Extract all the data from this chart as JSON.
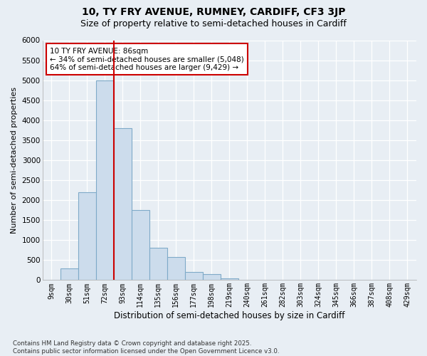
{
  "title1": "10, TY FRY AVENUE, RUMNEY, CARDIFF, CF3 3JP",
  "title2": "Size of property relative to semi-detached houses in Cardiff",
  "xlabel": "Distribution of semi-detached houses by size in Cardiff",
  "ylabel": "Number of semi-detached properties",
  "categories": [
    "9sqm",
    "30sqm",
    "51sqm",
    "72sqm",
    "93sqm",
    "114sqm",
    "135sqm",
    "156sqm",
    "177sqm",
    "198sqm",
    "219sqm",
    "240sqm",
    "261sqm",
    "282sqm",
    "303sqm",
    "324sqm",
    "345sqm",
    "366sqm",
    "387sqm",
    "408sqm",
    "429sqm"
  ],
  "values": [
    10,
    300,
    2200,
    5000,
    3800,
    1750,
    800,
    580,
    200,
    150,
    50,
    10,
    0,
    0,
    0,
    0,
    0,
    0,
    0,
    0,
    0
  ],
  "bar_color": "#ccdcec",
  "bar_edgecolor": "#7faac8",
  "vline_color": "#cc0000",
  "vline_pos": 3.5,
  "annotation_text": "10 TY FRY AVENUE: 86sqm\n← 34% of semi-detached houses are smaller (5,048)\n64% of semi-detached houses are larger (9,429) →",
  "annotation_box_facecolor": "white",
  "annotation_box_edgecolor": "#cc0000",
  "ylim": [
    0,
    6000
  ],
  "yticks": [
    0,
    500,
    1000,
    1500,
    2000,
    2500,
    3000,
    3500,
    4000,
    4500,
    5000,
    5500,
    6000
  ],
  "footnote": "Contains HM Land Registry data © Crown copyright and database right 2025.\nContains public sector information licensed under the Open Government Licence v3.0.",
  "bg_color": "#e8eef4",
  "grid_color": "#ffffff",
  "title1_fontsize": 10,
  "title2_fontsize": 9
}
